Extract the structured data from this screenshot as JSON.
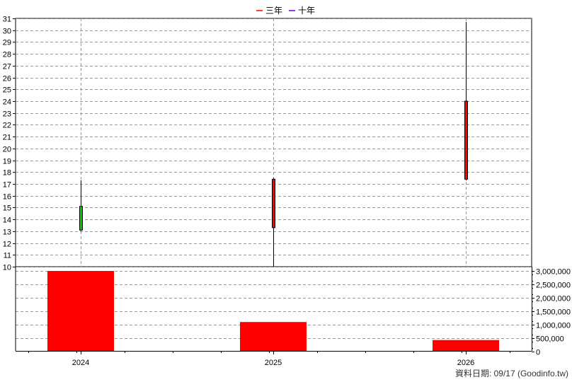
{
  "legend": [
    {
      "label": "三年",
      "color": "#ff0000"
    },
    {
      "label": "十年",
      "color": "#6600cc"
    }
  ],
  "footer": "資料日期: 09/17  (Goodinfo.tw)",
  "chart_data": [
    {
      "type": "candlestick",
      "categories": [
        "2024",
        "2025",
        "2026"
      ],
      "ylim": [
        10,
        31
      ],
      "yticks": [
        10,
        11,
        12,
        13,
        14,
        15,
        16,
        17,
        18,
        19,
        20,
        21,
        22,
        23,
        24,
        25,
        26,
        27,
        28,
        29,
        30,
        31
      ],
      "grid": true,
      "candles": [
        {
          "x": "2024",
          "open": 13.1,
          "close": 15.1,
          "high": 17.3,
          "low": 13.0,
          "color": "#00cc00"
        },
        {
          "x": "2025",
          "open": 17.4,
          "close": 13.3,
          "high": 17.5,
          "low": 10.0,
          "color": "#ff0000"
        },
        {
          "x": "2026",
          "open": 24.0,
          "close": 17.4,
          "high": 30.7,
          "low": 17.3,
          "color": "#ff0000"
        }
      ]
    },
    {
      "type": "bar",
      "categories": [
        "2024",
        "2025",
        "2026"
      ],
      "values": [
        3000000,
        1100000,
        430000
      ],
      "ylim": [
        0,
        3000000
      ],
      "yticks": [
        "0",
        "500,000",
        "1,000,000",
        "1,500,000",
        "2,000,000",
        "2,500,000",
        "3,000,000"
      ],
      "color": "#ff0000",
      "grid": true
    }
  ]
}
